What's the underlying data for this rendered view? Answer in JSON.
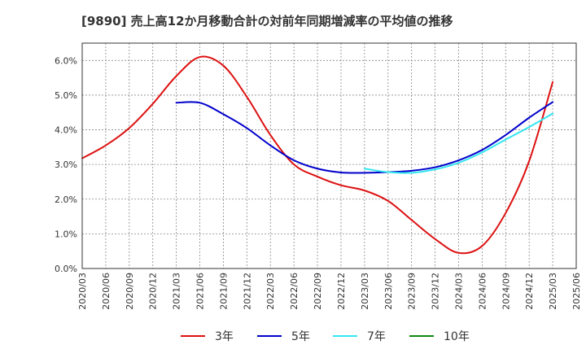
{
  "chart_data": {
    "type": "line",
    "title": "[9890]  売上高12か月移動合計の対前年同期増減率の平均値の推移",
    "xlabel": "",
    "ylabel": "",
    "ylim": [
      0,
      6.5
    ],
    "yticks": [
      0,
      1,
      2,
      3,
      4,
      5,
      6
    ],
    "ytick_labels": [
      "0.0%",
      "1.0%",
      "2.0%",
      "3.0%",
      "4.0%",
      "5.0%",
      "6.0%"
    ],
    "x_tick_labels": [
      "2020/03",
      "2020/06",
      "2020/09",
      "2020/12",
      "2021/03",
      "2021/06",
      "2021/09",
      "2021/12",
      "2022/03",
      "2022/06",
      "2022/09",
      "2022/12",
      "2023/03",
      "2023/06",
      "2023/09",
      "2023/12",
      "2024/03",
      "2024/06",
      "2024/09",
      "2024/12",
      "2025/03",
      "2025/06"
    ],
    "grid": true,
    "legend_position": "bottom",
    "series": [
      {
        "name": "3年",
        "color": "#dd1111",
        "points": [
          [
            "2020/03",
            3.18
          ],
          [
            "2020/06",
            3.55
          ],
          [
            "2020/09",
            4.05
          ],
          [
            "2020/12",
            4.75
          ],
          [
            "2021/03",
            5.55
          ],
          [
            "2021/06",
            6.1
          ],
          [
            "2021/09",
            5.85
          ],
          [
            "2021/12",
            4.95
          ],
          [
            "2022/03",
            3.85
          ],
          [
            "2022/06",
            3.0
          ],
          [
            "2022/09",
            2.65
          ],
          [
            "2022/12",
            2.4
          ],
          [
            "2023/03",
            2.25
          ],
          [
            "2023/06",
            1.95
          ],
          [
            "2023/09",
            1.4
          ],
          [
            "2023/12",
            0.85
          ],
          [
            "2024/03",
            0.45
          ],
          [
            "2024/06",
            0.65
          ],
          [
            "2024/09",
            1.6
          ],
          [
            "2024/12",
            3.1
          ],
          [
            "2025/03",
            5.38
          ]
        ]
      },
      {
        "name": "5年",
        "color": "#0000cc",
        "points": [
          [
            "2021/03",
            4.78
          ],
          [
            "2021/06",
            4.78
          ],
          [
            "2021/09",
            4.45
          ],
          [
            "2021/12",
            4.05
          ],
          [
            "2022/03",
            3.55
          ],
          [
            "2022/06",
            3.12
          ],
          [
            "2022/09",
            2.88
          ],
          [
            "2022/12",
            2.77
          ],
          [
            "2023/03",
            2.76
          ],
          [
            "2023/06",
            2.78
          ],
          [
            "2023/09",
            2.82
          ],
          [
            "2023/12",
            2.92
          ],
          [
            "2024/03",
            3.12
          ],
          [
            "2024/06",
            3.42
          ],
          [
            "2024/09",
            3.85
          ],
          [
            "2024/12",
            4.35
          ],
          [
            "2025/03",
            4.8
          ]
        ]
      },
      {
        "name": "7年",
        "color": "#33e6f0",
        "points": [
          [
            "2023/03",
            2.88
          ],
          [
            "2023/06",
            2.78
          ],
          [
            "2023/09",
            2.76
          ],
          [
            "2023/12",
            2.86
          ],
          [
            "2024/03",
            3.05
          ],
          [
            "2024/06",
            3.35
          ],
          [
            "2024/09",
            3.72
          ],
          [
            "2024/12",
            4.08
          ],
          [
            "2025/03",
            4.47
          ]
        ]
      },
      {
        "name": "10年",
        "color": "#118811",
        "points": []
      }
    ]
  }
}
